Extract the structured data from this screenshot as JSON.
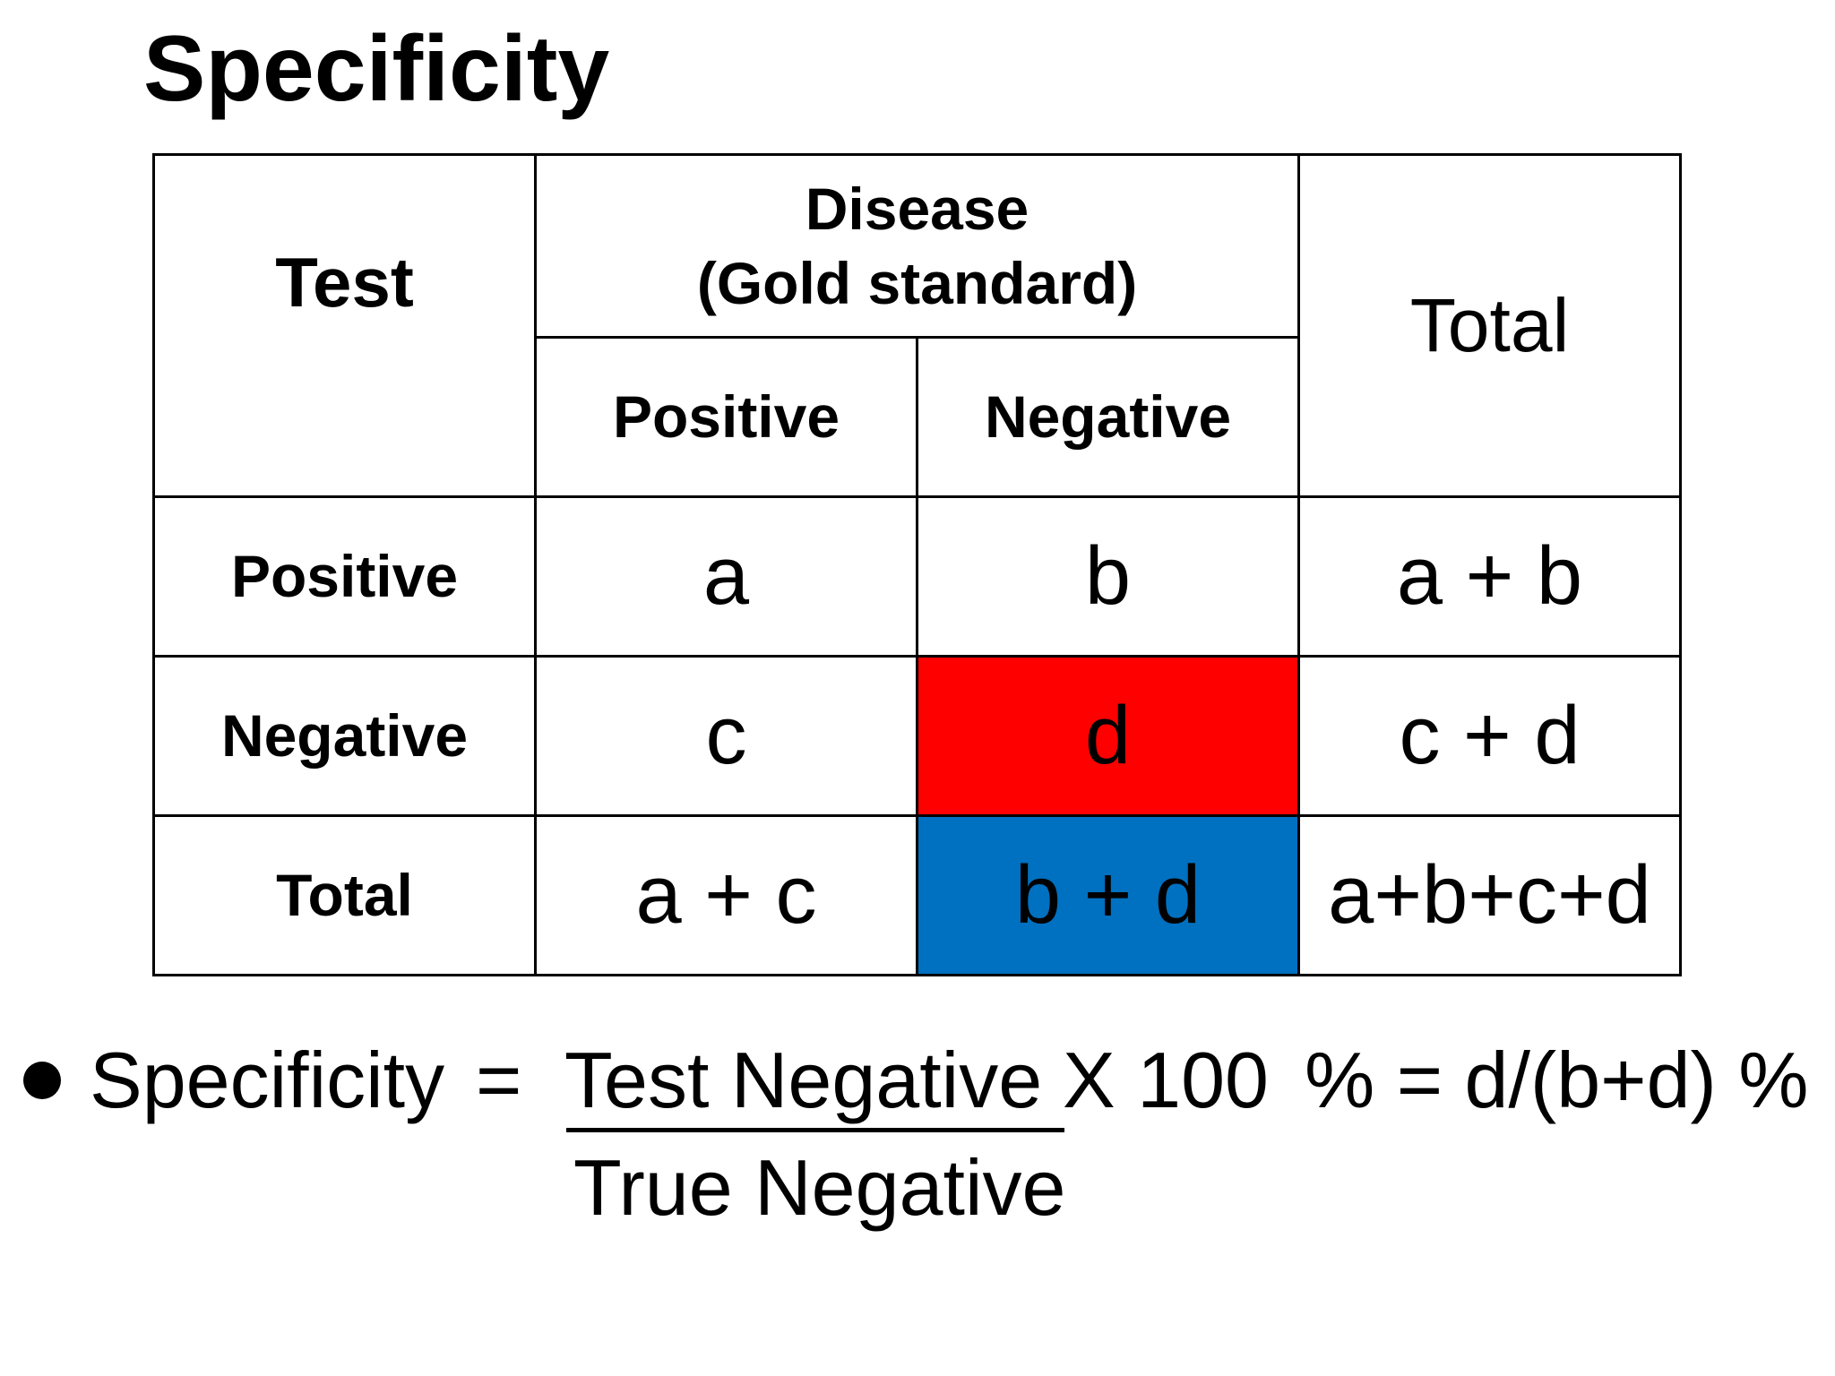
{
  "title": "Specificity",
  "colors": {
    "highlight_true_negative": "#ff0000",
    "highlight_column_total": "#0070c0",
    "border": "#000000",
    "text": "#000000"
  },
  "table": {
    "header": {
      "test": "Test",
      "disease_line1": "Disease",
      "disease_line2": "(Gold standard)",
      "total": "Total",
      "disease_positive": "Positive",
      "disease_negative": "Negative"
    },
    "rows": [
      {
        "label": "Positive",
        "cells": [
          "a",
          "b",
          "a + b"
        ]
      },
      {
        "label": "Negative",
        "cells": [
          "c",
          "d",
          "c + d"
        ]
      },
      {
        "label": "Total",
        "cells": [
          "a + c",
          "b + d",
          "a+b+c+d"
        ]
      }
    ]
  },
  "formula": {
    "label": "Specificity",
    "equals": "=",
    "numerator": "Test Negative ",
    "multiplier": "X 100",
    "result": "% = d/(b+d) %",
    "denominator": "True Negative"
  }
}
